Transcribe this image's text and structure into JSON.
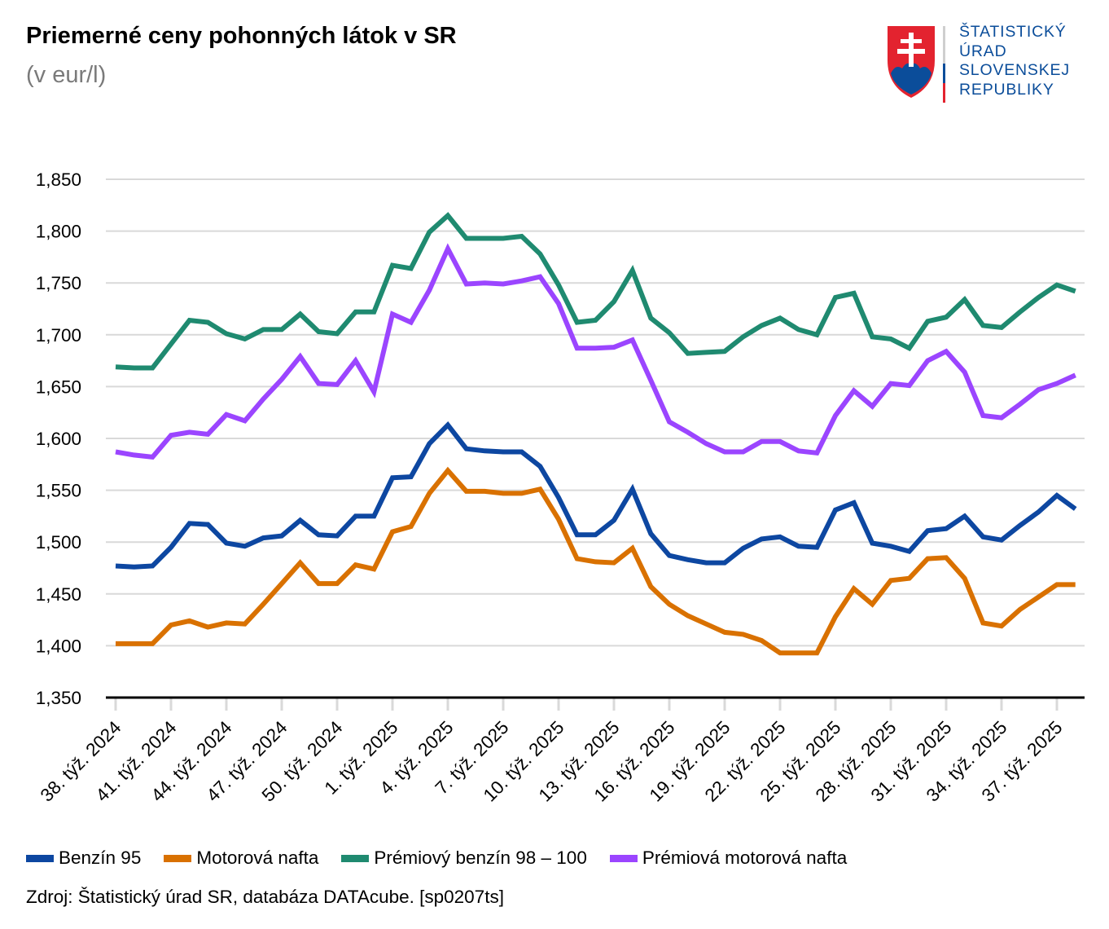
{
  "header": {
    "title": "Priemerné ceny pohonných látok v SR",
    "subtitle": "(v eur/l)"
  },
  "logo": {
    "lines": [
      "ŠTATISTICKÝ",
      "ÚRAD",
      "SLOVENSKEJ",
      "REPUBLIKY"
    ],
    "colors": {
      "red": "#e3232f",
      "blue": "#0b4d9a",
      "white": "#ffffff"
    }
  },
  "footer": {
    "source": "Zdroj: Štatistický úrad SR, databáza DATAcube. [sp0207ts]"
  },
  "chart_data": {
    "type": "line",
    "title": "Priemerné ceny pohonných látok v SR",
    "subtitle": "(v eur/l)",
    "xlabel": "",
    "ylabel": "",
    "ylim": [
      1.35,
      1.85
    ],
    "yticks": [
      1.35,
      1.4,
      1.45,
      1.5,
      1.55,
      1.6,
      1.65,
      1.7,
      1.75,
      1.8,
      1.85
    ],
    "ytick_labels": [
      "1,350",
      "1,400",
      "1,450",
      "1,500",
      "1,550",
      "1,600",
      "1,650",
      "1,700",
      "1,750",
      "1,800",
      "1,850"
    ],
    "grid": true,
    "legend_position": "bottom",
    "x": [
      "38. týž. 2024",
      "39. týž. 2024",
      "40. týž. 2024",
      "41. týž. 2024",
      "42. týž. 2024",
      "43. týž. 2024",
      "44. týž. 2024",
      "45. týž. 2024",
      "46. týž. 2024",
      "47. týž. 2024",
      "48. týž. 2024",
      "49. týž. 2024",
      "50. týž. 2024",
      "51. týž. 2024",
      "52. týž. 2024",
      "1. týž. 2025",
      "2. týž. 2025",
      "3. týž. 2025",
      "4. týž. 2025",
      "5. týž. 2025",
      "6. týž. 2025",
      "7. týž. 2025",
      "8. týž. 2025",
      "9. týž. 2025",
      "10. týž. 2025",
      "11. týž. 2025",
      "12. týž. 2025",
      "13. týž. 2025",
      "14. týž. 2025",
      "15. týž. 2025",
      "16. týž. 2025",
      "17. týž. 2025",
      "18. týž. 2025",
      "19. týž. 2025",
      "20. týž. 2025",
      "21. týž. 2025",
      "22. týž. 2025",
      "23. týž. 2025",
      "24. týž. 2025",
      "25. týž. 2025",
      "26. týž. 2025",
      "27. týž. 2025",
      "28. týž. 2025",
      "29. týž. 2025",
      "30. týž. 2025",
      "31. týž. 2025",
      "32. týž. 2025",
      "33. týž. 2025",
      "34. týž. 2025",
      "35. týž. 2025",
      "36. týž. 2025",
      "37. týž. 2025",
      "38. týž. 2025"
    ],
    "xtick_labels": [
      "38. týž. 2024",
      "41. týž. 2024",
      "44. týž. 2024",
      "47. týž. 2024",
      "50. týž. 2024",
      "1. týž. 2025",
      "4. týž. 2025",
      "7. týž. 2025",
      "10. týž. 2025",
      "13. týž. 2025",
      "16. týž. 2025",
      "19. týž. 2025",
      "22. týž. 2025",
      "25. týž. 2025",
      "28. týž. 2025",
      "31. týž. 2025",
      "34. týž. 2025",
      "37. týž. 2025"
    ],
    "series": [
      {
        "name": "Benzín 95",
        "color": "#0d47a1",
        "values": [
          1.477,
          1.476,
          1.477,
          1.495,
          1.518,
          1.517,
          1.499,
          1.496,
          1.504,
          1.506,
          1.521,
          1.507,
          1.506,
          1.525,
          1.525,
          1.562,
          1.563,
          1.595,
          1.613,
          1.59,
          1.588,
          1.587,
          1.587,
          1.573,
          1.543,
          1.507,
          1.507,
          1.521,
          1.551,
          1.508,
          1.487,
          1.483,
          1.48,
          1.48,
          1.494,
          1.503,
          1.505,
          1.496,
          1.495,
          1.531,
          1.538,
          1.499,
          1.496,
          1.491,
          1.511,
          1.513,
          1.525,
          1.505,
          1.502,
          1.516,
          1.529,
          1.545,
          1.532
        ]
      },
      {
        "name": "Motorová nafta",
        "color": "#d97100",
        "values": [
          1.402,
          1.402,
          1.402,
          1.42,
          1.424,
          1.418,
          1.422,
          1.421,
          1.44,
          1.46,
          1.48,
          1.46,
          1.46,
          1.478,
          1.474,
          1.51,
          1.515,
          1.547,
          1.569,
          1.549,
          1.549,
          1.547,
          1.547,
          1.551,
          1.522,
          1.484,
          1.481,
          1.48,
          1.494,
          1.457,
          1.44,
          1.429,
          1.421,
          1.413,
          1.411,
          1.405,
          1.393,
          1.393,
          1.393,
          1.428,
          1.455,
          1.44,
          1.463,
          1.465,
          1.484,
          1.485,
          1.465,
          1.422,
          1.419,
          1.435,
          1.447,
          1.459,
          1.459
        ]
      },
      {
        "name": "Prémiový benzín 98 – 100",
        "color": "#1f8a70",
        "values": [
          1.669,
          1.668,
          1.668,
          1.691,
          1.714,
          1.712,
          1.701,
          1.696,
          1.705,
          1.705,
          1.72,
          1.703,
          1.701,
          1.722,
          1.722,
          1.767,
          1.764,
          1.799,
          1.815,
          1.793,
          1.793,
          1.793,
          1.795,
          1.778,
          1.748,
          1.712,
          1.714,
          1.732,
          1.762,
          1.716,
          1.702,
          1.682,
          1.683,
          1.684,
          1.698,
          1.709,
          1.716,
          1.705,
          1.7,
          1.736,
          1.74,
          1.698,
          1.696,
          1.687,
          1.713,
          1.717,
          1.734,
          1.709,
          1.707,
          1.722,
          1.736,
          1.748,
          1.742
        ]
      },
      {
        "name": "Prémiová motorová nafta",
        "color": "#9b45ff",
        "values": [
          1.587,
          1.584,
          1.582,
          1.603,
          1.606,
          1.604,
          1.623,
          1.617,
          1.638,
          1.657,
          1.679,
          1.653,
          1.652,
          1.675,
          1.645,
          1.72,
          1.712,
          1.743,
          1.783,
          1.749,
          1.75,
          1.749,
          1.752,
          1.756,
          1.73,
          1.687,
          1.687,
          1.688,
          1.695,
          1.656,
          1.616,
          1.606,
          1.595,
          1.587,
          1.587,
          1.597,
          1.597,
          1.588,
          1.586,
          1.622,
          1.646,
          1.631,
          1.653,
          1.651,
          1.675,
          1.684,
          1.664,
          1.622,
          1.62,
          1.633,
          1.647,
          1.653,
          1.661
        ]
      }
    ]
  }
}
